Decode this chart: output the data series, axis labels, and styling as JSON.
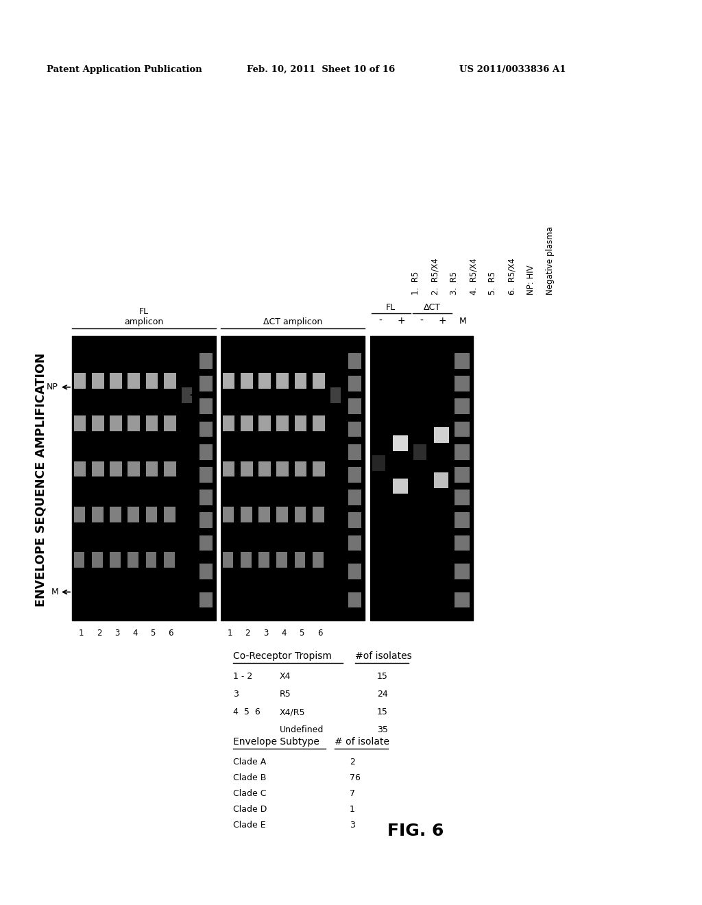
{
  "patent_header_left": "Patent Application Publication",
  "patent_header_mid": "Feb. 10, 2011  Sheet 10 of 16",
  "patent_header_right": "US 2011/0033836 A1",
  "main_title": "ENVELOPE SEQUENCE AMPLIFICATION",
  "fig_label": "FIG. 6",
  "sample_legend": [
    "1.  R5",
    "2.  R5/X4",
    "3.  R5",
    "4.  R5/X4",
    "5.  R5",
    "6.  R5/X4",
    "NP: HIV",
    "Negative plasma"
  ],
  "fl_amplicon": "FL\namplicon",
  "dct_amplicon": "ΔCT amplicon",
  "np_label": "NP",
  "m_label": "M",
  "fl_label": "FL",
  "dct_label": "ΔCT",
  "plus": "+",
  "minus": "-",
  "table1_title": "Co-Receptor Tropism",
  "table1_col1": [
    "1 - 2",
    "3",
    "4  5  6",
    ""
  ],
  "table1_col2": [
    "X4",
    "R5",
    "X4/R5",
    "Undefined"
  ],
  "table1_count_title": "#of isolates",
  "table1_counts": [
    "15",
    "24",
    "15",
    "35"
  ],
  "table2_title": "Envelope Subtype",
  "table2_col1": [
    "Clade A",
    "Clade B",
    "Clade C",
    "Clade D",
    "Clade E"
  ],
  "table2_count_title": "# of isolate",
  "table2_counts": [
    "2",
    "76",
    "7",
    "1",
    "3"
  ],
  "bg_color": "#ffffff",
  "gel_color": "#000000"
}
